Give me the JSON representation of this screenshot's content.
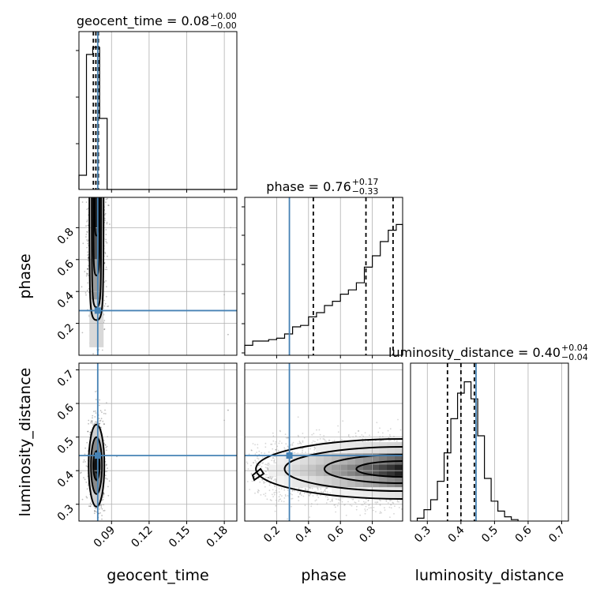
{
  "chart_data": {
    "type": "corner",
    "parameters": [
      "geocent_time",
      "phase",
      "luminosity_distance"
    ],
    "truths": {
      "geocent_time": 0.079,
      "phase": 0.28,
      "luminosity_distance": 0.445
    },
    "truth_color": "#4682b4",
    "axes": {
      "geocent_time": {
        "range": [
          0.064,
          0.19
        ],
        "ticks": [
          0.09,
          0.12,
          0.15,
          0.18
        ],
        "tick_labels": [
          "0.09",
          "0.12",
          "0.15",
          "0.18"
        ],
        "label": "geocent_time"
      },
      "phase": {
        "range": [
          0.0,
          0.99
        ],
        "ticks": [
          0.2,
          0.4,
          0.6,
          0.8
        ],
        "tick_labels": [
          "0.2",
          "0.4",
          "0.6",
          "0.8"
        ],
        "label": "phase"
      },
      "luminosity_distance": {
        "range": [
          0.25,
          0.72
        ],
        "ticks": [
          0.3,
          0.4,
          0.5,
          0.6,
          0.7
        ],
        "tick_labels": [
          "0.3",
          "0.4",
          "0.5",
          "0.6",
          "0.7"
        ],
        "label": "luminosity_distance"
      }
    },
    "titles": [
      {
        "param": "geocent_time",
        "main": "geocent_time = 0.08",
        "plus": "+0.00",
        "minus": "−0.00"
      },
      {
        "param": "phase",
        "main": "phase = 0.76",
        "plus": "+0.17",
        "minus": "−0.33"
      },
      {
        "param": "luminosity_distance",
        "main": "luminosity_distance = 0.40",
        "plus": "+0.04",
        "minus": "−0.04"
      }
    ],
    "quantiles": {
      "geocent_time": [
        0.0755,
        0.0775,
        0.0795
      ],
      "phase": [
        0.43,
        0.76,
        0.93
      ],
      "luminosity_distance": [
        0.36,
        0.4,
        0.44
      ]
    },
    "histograms": {
      "geocent_time": {
        "edges": [
          0.064,
          0.07,
          0.075,
          0.0805,
          0.0865,
          0.19
        ],
        "counts": [
          0.1,
          0.95,
          1.0,
          0.5,
          0.0
        ]
      },
      "phase": {
        "edges": [
          0.0,
          0.05,
          0.1,
          0.15,
          0.2,
          0.25,
          0.3,
          0.35,
          0.4,
          0.45,
          0.5,
          0.55,
          0.6,
          0.65,
          0.7,
          0.75,
          0.8,
          0.85,
          0.9,
          0.95,
          0.99
        ],
        "counts": [
          0.07,
          0.1,
          0.1,
          0.11,
          0.12,
          0.15,
          0.2,
          0.21,
          0.27,
          0.3,
          0.35,
          0.38,
          0.43,
          0.46,
          0.51,
          0.62,
          0.7,
          0.8,
          0.88,
          0.92
        ]
      },
      "luminosity_distance": {
        "edges": [
          0.27,
          0.29,
          0.31,
          0.33,
          0.35,
          0.37,
          0.39,
          0.41,
          0.43,
          0.45,
          0.47,
          0.49,
          0.51,
          0.53,
          0.55,
          0.57
        ],
        "counts": [
          0.02,
          0.08,
          0.15,
          0.28,
          0.48,
          0.72,
          0.9,
          0.98,
          0.86,
          0.6,
          0.3,
          0.14,
          0.07,
          0.03,
          0.01
        ]
      }
    },
    "grid": true
  }
}
